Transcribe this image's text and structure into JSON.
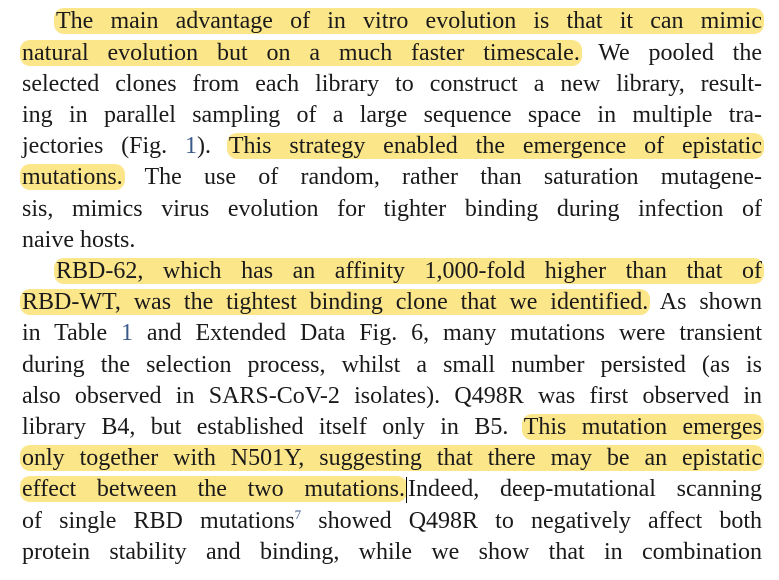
{
  "paragraphs": [
    {
      "lines": [
        {
          "segments": [
            {
              "text": "The main advantage of in vitro evolution is that it can mimic",
              "hl": true
            }
          ],
          "indent": true
        },
        {
          "segments": [
            {
              "text": "natural evolution but on a much faster timescale.",
              "hl": true
            },
            {
              "text": " We pooled the"
            }
          ]
        },
        {
          "segments": [
            {
              "text": "selected clones from each library to construct a new library, result-"
            }
          ]
        },
        {
          "segments": [
            {
              "text": "ing in parallel sampling of a large sequence space in multiple tra-"
            }
          ]
        },
        {
          "segments": [
            {
              "text": "jectories (Fig. "
            },
            {
              "text": "1",
              "ref": true
            },
            {
              "text": "). "
            },
            {
              "text": "This strategy enabled the emergence of epistatic",
              "hl": true
            }
          ]
        },
        {
          "segments": [
            {
              "text": "mutations.",
              "hl": true
            },
            {
              "text": " The use of random, rather than saturation mutagene-"
            }
          ]
        },
        {
          "segments": [
            {
              "text": "sis, mimics virus evolution for tighter binding during infection of"
            }
          ]
        },
        {
          "segments": [
            {
              "text": "naive hosts."
            }
          ],
          "last": true
        }
      ]
    },
    {
      "lines": [
        {
          "segments": [
            {
              "text": "RBD-62, which has an affinity 1,000-fold higher than that of",
              "hl": true
            }
          ],
          "indent": true
        },
        {
          "segments": [
            {
              "text": "RBD-WT, was the tightest binding clone that we identified.",
              "hl": true
            },
            {
              "text": " As shown"
            }
          ]
        },
        {
          "segments": [
            {
              "text": "in Table "
            },
            {
              "text": "1",
              "ref": true
            },
            {
              "text": " and Extended Data Fig. 6, many mutations were transient"
            }
          ]
        },
        {
          "segments": [
            {
              "text": "during the selection process, whilst a small number persisted (as is"
            }
          ]
        },
        {
          "segments": [
            {
              "text": "also observed in SARS-CoV-2 isolates). Q498R was first observed in"
            }
          ]
        },
        {
          "segments": [
            {
              "text": "library B4, but established itself only in B5. "
            },
            {
              "text": "This mutation emerges",
              "hl": true
            }
          ]
        },
        {
          "segments": [
            {
              "text": "only together with N501Y, suggesting that there may be an epistatic",
              "hl": true
            }
          ]
        },
        {
          "segments": [
            {
              "text": "effect between the two mutations.",
              "hl": true
            },
            {
              "text": "",
              "caret": true
            },
            {
              "text": "Indeed, deep-mutational scanning"
            }
          ]
        },
        {
          "segments": [
            {
              "text": "of single RBD mutations"
            },
            {
              "text": "7",
              "sup": true
            },
            {
              "text": " showed Q498R to negatively affect both"
            }
          ]
        },
        {
          "segments": [
            {
              "text": "protein stability and binding, while we show that in combination"
            }
          ]
        }
      ]
    }
  ],
  "colors": {
    "highlight": "#fce68a",
    "text": "#1a1a1a",
    "reference_link": "#3a5a8c"
  }
}
